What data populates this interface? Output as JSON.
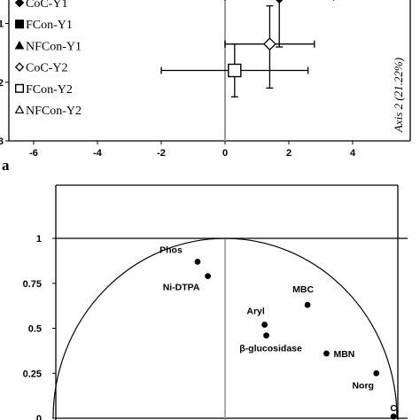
{
  "chart_data": [
    {
      "type": "scatter",
      "panel_label": "a",
      "x_ticks": [
        "-6",
        "-4",
        "-2",
        "0",
        "2",
        "4"
      ],
      "y_ticks": [
        "-1",
        "-2",
        "-3"
      ],
      "xlim": [
        -6,
        4
      ],
      "ylim": [
        -3,
        -0.6
      ],
      "ylabel": "Axis 2 (21.22%)",
      "legend_position": "left",
      "legend": [
        {
          "symbol": "diamond-filled",
          "label": "CoC-Y1"
        },
        {
          "symbol": "square-filled",
          "label": "FCon-Y1"
        },
        {
          "symbol": "triangle-filled",
          "label": "NFCon-Y1"
        },
        {
          "symbol": "diamond-open",
          "label": "CoC-Y2"
        },
        {
          "symbol": "square-open",
          "label": "FCon-Y2"
        },
        {
          "symbol": "triangle-open",
          "label": "NFCon-Y2"
        }
      ],
      "points": [
        {
          "series": "CoC-Y1",
          "symbol": "diamond-filled",
          "x": 1.7,
          "y": -0.55,
          "xerr": [
            1.7,
            1.7
          ],
          "yerr": [
            0.7,
            0.85
          ]
        },
        {
          "series": "CoC-Y2",
          "symbol": "diamond-open",
          "x": 1.4,
          "y": -1.35,
          "xerr": [
            1.4,
            1.4
          ],
          "yerr": [
            0.65,
            0.75
          ]
        },
        {
          "series": "FCon-Y2",
          "symbol": "square-open",
          "x": 0.3,
          "y": -1.8,
          "xerr": [
            2.3,
            2.3
          ],
          "yerr": [
            0.45,
            0.45
          ]
        }
      ]
    },
    {
      "type": "scatter",
      "x_ticks": [],
      "y_ticks": [
        "1",
        "0.75",
        "0.5",
        "0.25",
        "0"
      ],
      "xlim": [
        -1,
        1
      ],
      "ylim": [
        0,
        1
      ],
      "grid": false,
      "points": [
        {
          "label": "Phos",
          "x": -0.16,
          "y": 0.87
        },
        {
          "label": "Ni-DTPA",
          "x": -0.1,
          "y": 0.79
        },
        {
          "label": "MBC",
          "x": 0.48,
          "y": 0.63
        },
        {
          "label": "Aryl",
          "x": 0.23,
          "y": 0.52
        },
        {
          "label": "β-glucosidase",
          "x": 0.24,
          "y": 0.46
        },
        {
          "label": "MBN",
          "x": 0.59,
          "y": 0.36
        },
        {
          "label": "Norg",
          "x": 0.88,
          "y": 0.25
        },
        {
          "label": "C",
          "x": 0.98,
          "y": 0.01
        }
      ]
    }
  ]
}
